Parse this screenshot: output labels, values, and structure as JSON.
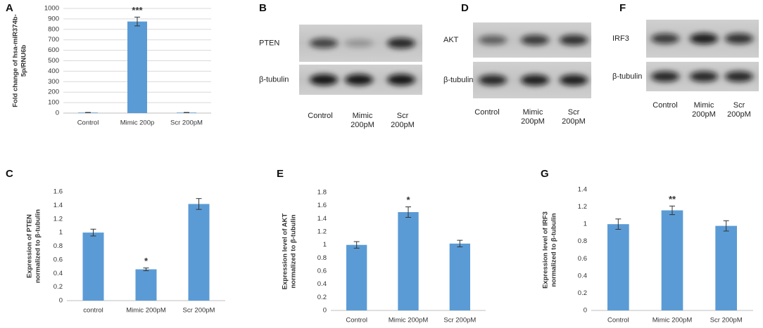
{
  "chart_data": [
    {
      "type": "bar",
      "panel": "A",
      "ylabel": [
        "Fold change of hsa-miR374b-",
        "5p/RNU6b"
      ],
      "categories": [
        "Control",
        "Mimic 200p",
        "Scr 200pM"
      ],
      "values": [
        5,
        875,
        5
      ],
      "errors": [
        1,
        42,
        1
      ],
      "significance": [
        null,
        "***",
        null
      ],
      "color": "#5b9bd5",
      "ylim": [
        0,
        1000
      ],
      "yticks": [
        0,
        100,
        200,
        300,
        400,
        500,
        600,
        700,
        800,
        900,
        1000
      ],
      "grid": true
    },
    {
      "type": "bar",
      "panel": "C",
      "ylabel": [
        "Expression of PTEN",
        "normalized to β-tubulin"
      ],
      "categories": [
        "control",
        "Mimic 200pM",
        "Scr 200pM"
      ],
      "values": [
        1.0,
        0.46,
        1.42
      ],
      "errors": [
        0.05,
        0.02,
        0.08
      ],
      "significance": [
        null,
        "*",
        null
      ],
      "color": "#5b9bd5",
      "ylim": [
        0,
        1.6
      ],
      "yticks": [
        0,
        0.2,
        0.4,
        0.6,
        0.8,
        1,
        1.2,
        1.4,
        1.6
      ],
      "grid": false
    },
    {
      "type": "bar",
      "panel": "E",
      "ylabel": [
        "Expression  level of AKT",
        "normalized to β-tubulin"
      ],
      "categories": [
        "Control",
        "Mimic  200pM",
        "Scr 200pM"
      ],
      "values": [
        1.0,
        1.5,
        1.02
      ],
      "errors": [
        0.05,
        0.08,
        0.05
      ],
      "significance": [
        null,
        "*",
        null
      ],
      "color": "#5b9bd5",
      "ylim": [
        0,
        1.8
      ],
      "yticks": [
        0,
        0.2,
        0.4,
        0.6,
        0.8,
        1,
        1.2,
        1.4,
        1.6,
        1.8
      ],
      "grid": false
    },
    {
      "type": "bar",
      "panel": "G",
      "ylabel": [
        "Expression  level of IRF3",
        "normalized to β-tubulin"
      ],
      "categories": [
        "Control",
        "Mimic  200pM",
        "Scr 200pM"
      ],
      "values": [
        1.0,
        1.16,
        0.98
      ],
      "errors": [
        0.06,
        0.05,
        0.06
      ],
      "significance": [
        null,
        "**",
        null
      ],
      "color": "#5b9bd5",
      "ylim": [
        0,
        1.4
      ],
      "yticks": [
        0,
        0.2,
        0.4,
        0.6,
        0.8,
        1,
        1.2,
        1.4
      ],
      "grid": false
    }
  ],
  "blots": [
    {
      "panel": "B",
      "rows": [
        "PTEN",
        "β-tubulin"
      ],
      "columns": [
        [
          "Control"
        ],
        [
          "Mimic",
          "200pM"
        ],
        [
          "Scr",
          "200pM"
        ]
      ]
    },
    {
      "panel": "D",
      "rows": [
        "AKT",
        "β-tubulin"
      ],
      "columns": [
        [
          "Control"
        ],
        [
          "Mimic",
          "200pM"
        ],
        [
          "Scr",
          "200pM"
        ]
      ]
    },
    {
      "panel": "F",
      "rows": [
        "IRF3",
        "β-tubulin"
      ],
      "columns": [
        [
          "Control"
        ],
        [
          "Mimic",
          "200pM"
        ],
        [
          "Scr",
          "200pM"
        ]
      ]
    }
  ]
}
